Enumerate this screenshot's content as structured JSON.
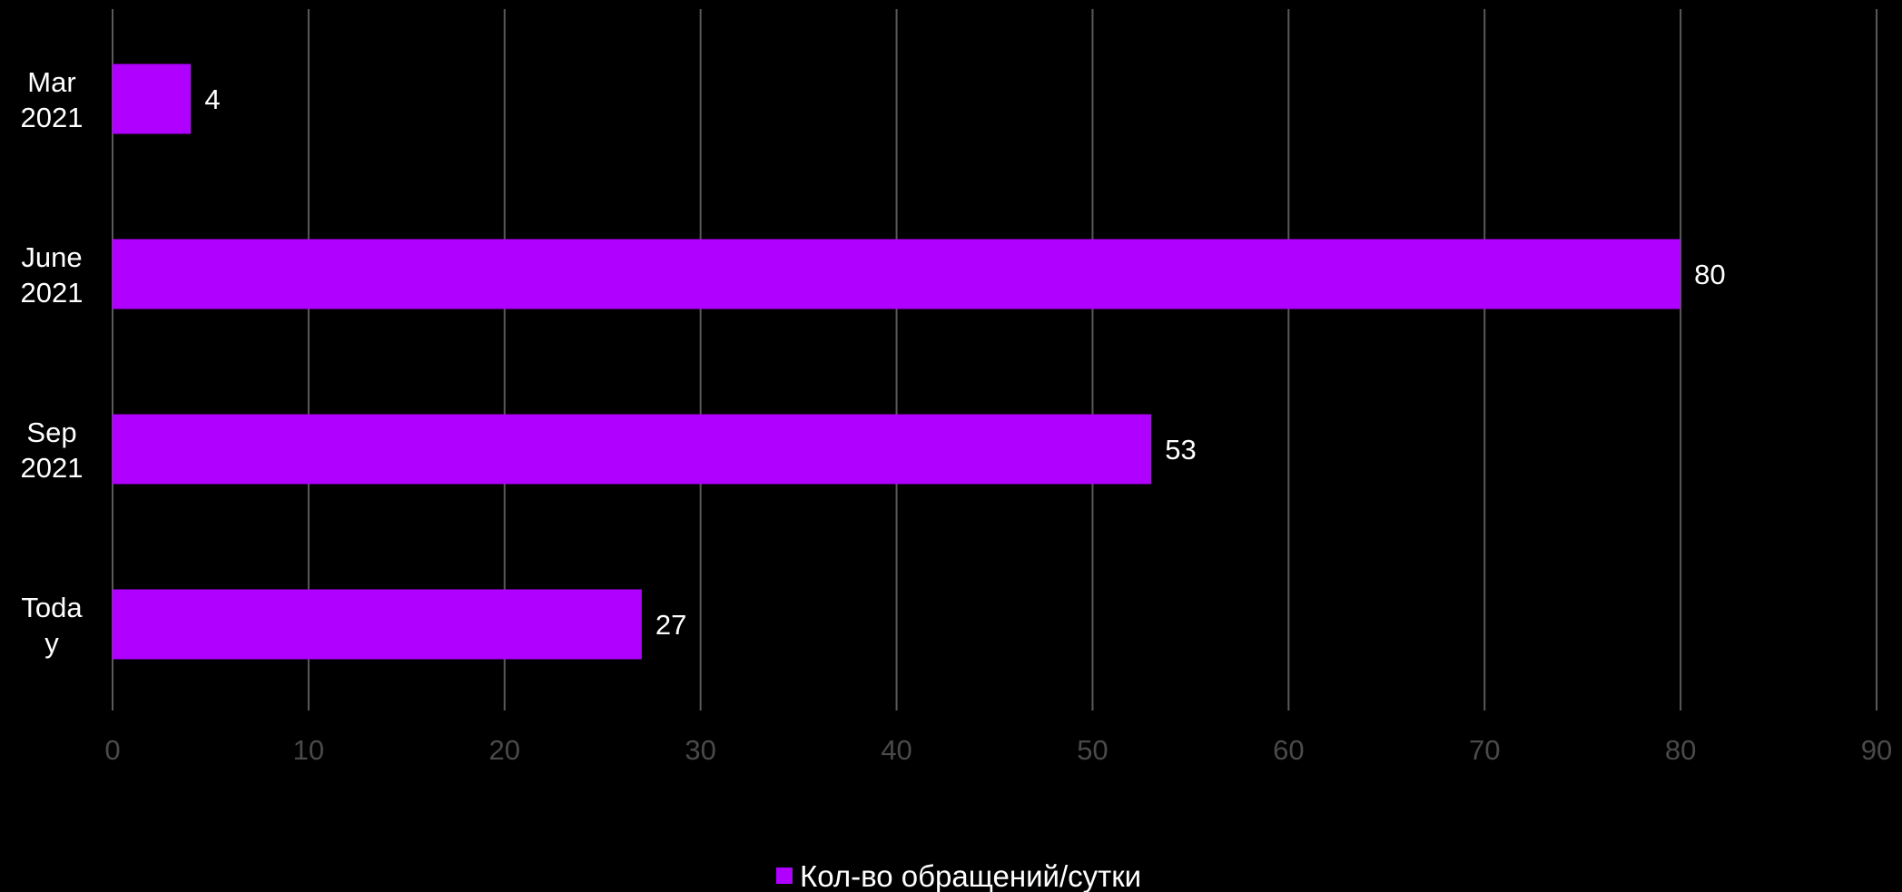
{
  "chart_data": {
    "type": "bar",
    "orientation": "horizontal",
    "categories": [
      [
        "Mar",
        "2021"
      ],
      [
        "June",
        "2021"
      ],
      [
        "Sep",
        "2021"
      ],
      [
        "Toda",
        "y"
      ]
    ],
    "series": [
      {
        "name": "Кол-во обращений/сутки",
        "values": [
          4,
          80,
          53,
          27
        ],
        "color": "#b000ff"
      }
    ],
    "xlim": [
      0,
      90
    ],
    "xticks": [
      "0",
      "10",
      "20",
      "30",
      "40",
      "50",
      "60",
      "70",
      "80",
      "90"
    ],
    "grid": "vertical",
    "grid_color": "#595959",
    "legend": "bottom-center",
    "data_labels": true,
    "background": "#000000"
  }
}
